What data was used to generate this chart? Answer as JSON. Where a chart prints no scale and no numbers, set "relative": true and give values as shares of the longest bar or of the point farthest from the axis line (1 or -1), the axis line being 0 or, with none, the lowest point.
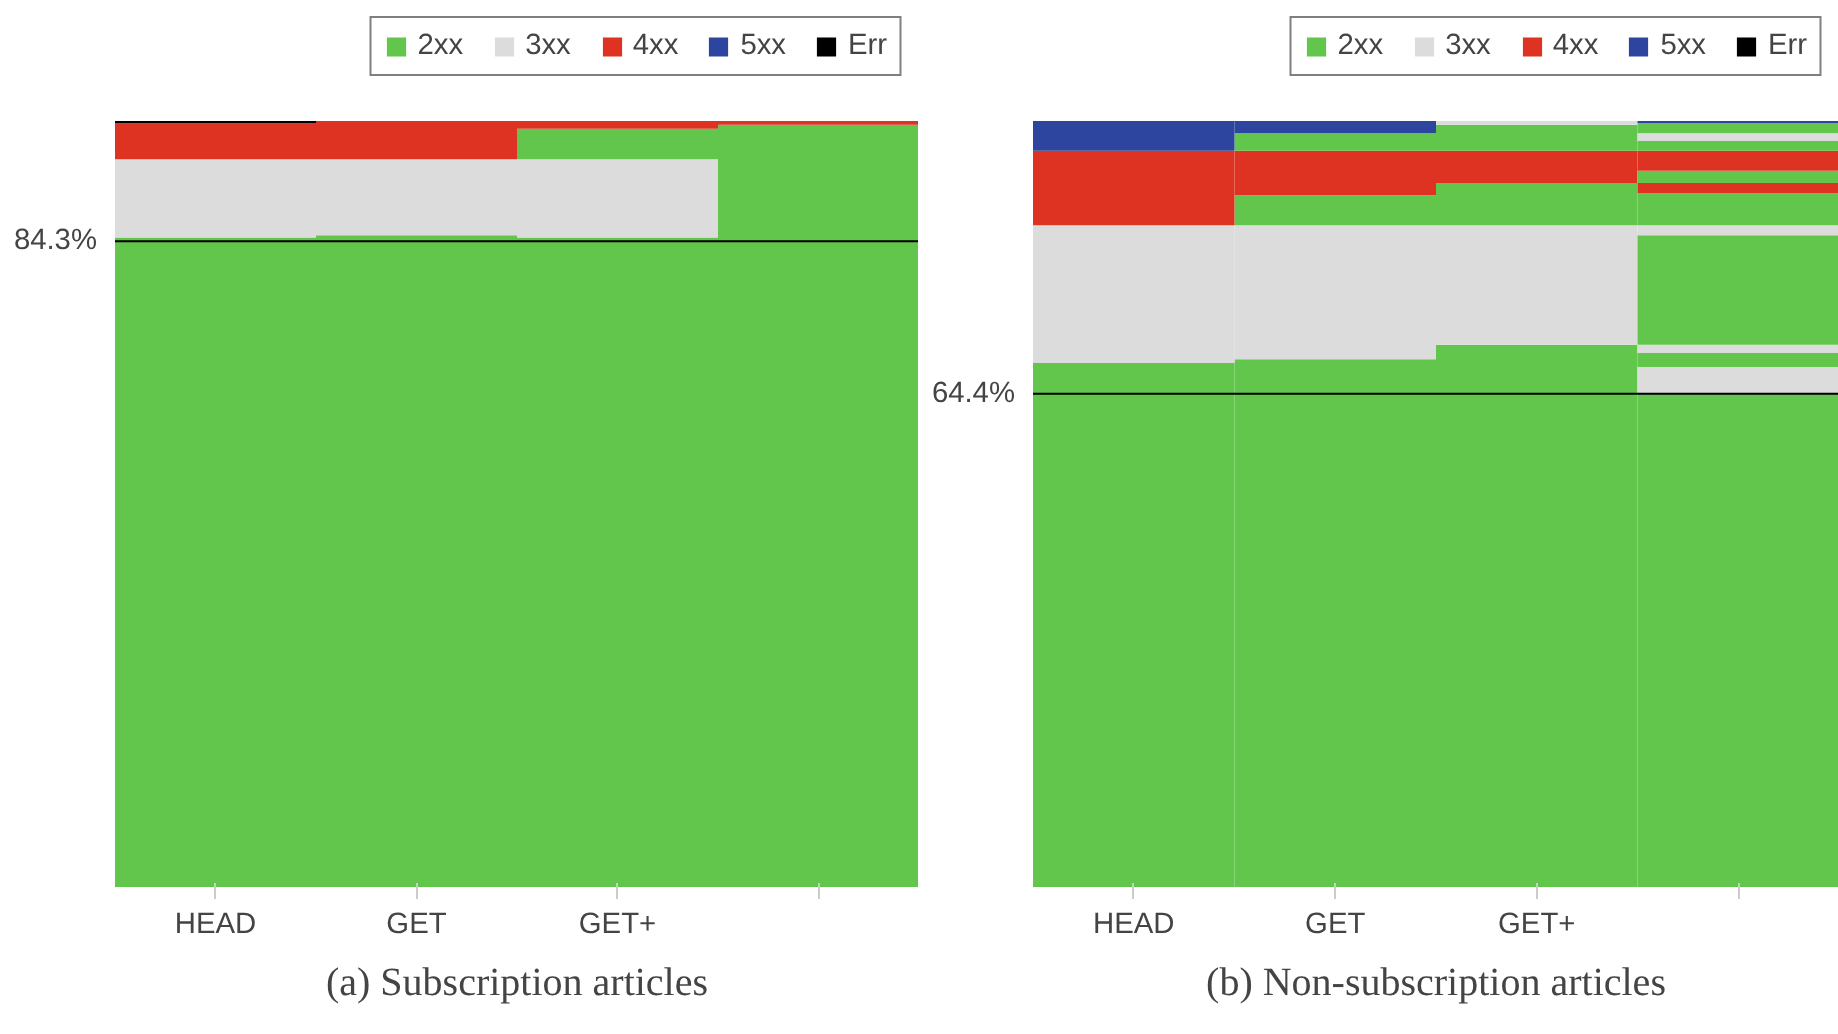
{
  "chart_data": [
    {
      "type": "bar",
      "stacked": true,
      "relative": true,
      "title": "(a) Subscription articles",
      "categories": [
        "HEAD",
        "GET",
        "GET+",
        null
      ],
      "legend": "top",
      "grid": false,
      "series": [
        {
          "name": "2xx",
          "color": "#61c64b",
          "values": [
            0.848,
            0.851,
            0.848,
            0.995
          ]
        },
        {
          "name": "3xx",
          "color": "#dcdcdc",
          "values": [
            0.102,
            0.099,
            0.102,
            null
          ]
        },
        {
          "color": "#61c64b",
          "values": [
            null,
            null,
            0.04,
            null
          ]
        },
        {
          "name": "4xx",
          "color": "#de3223",
          "values": [
            0.047,
            0.05,
            0.01,
            0.005
          ]
        },
        {
          "name": "5xx",
          "color": "#2e45a0",
          "values": [
            null,
            null,
            null,
            null
          ]
        },
        {
          "name": "Err",
          "color": "#000000",
          "values": [
            0.003,
            null,
            null,
            null
          ]
        }
      ],
      "ref_lines": [
        {
          "axis": "y",
          "value": 0.843,
          "label": "84.3%",
          "color": "#000000"
        }
      ]
    },
    {
      "type": "bar",
      "stacked": true,
      "relative": true,
      "title": "(b) Non-subscription articles",
      "categories": [
        "HEAD",
        "GET",
        "GET+",
        null
      ],
      "legend": "top",
      "grid": false,
      "series": [
        {
          "name": "2xx",
          "color": "#61c64b",
          "values": [
            0.684,
            0.689,
            0.708,
            0.645
          ]
        },
        {
          "name": "3xx",
          "color": "#dcdcdc",
          "values": [
            0.18,
            0.175,
            0.156,
            0.034
          ]
        },
        {
          "color": "#61c64b",
          "values": [
            null,
            0.039,
            0.055,
            0.018
          ]
        },
        {
          "color": "#dcdcdc",
          "values": [
            null,
            null,
            null,
            0.011
          ]
        },
        {
          "color": "#61c64b",
          "values": [
            null,
            null,
            null,
            0.143
          ]
        },
        {
          "color": "#dcdcdc",
          "values": [
            null,
            null,
            null,
            0.013
          ]
        },
        {
          "color": "#61c64b",
          "values": [
            null,
            null,
            null,
            0.042
          ]
        },
        {
          "name": "4xx",
          "color": "#de3223",
          "values": [
            0.097,
            0.058,
            0.042,
            0.013
          ]
        },
        {
          "color": "#61c64b",
          "values": [
            null,
            null,
            null,
            0.016
          ]
        },
        {
          "color": "#de3223",
          "values": [
            null,
            null,
            null,
            0.026
          ]
        },
        {
          "color": "#61c64b",
          "values": [
            null,
            0.023,
            0.034,
            0.013
          ]
        },
        {
          "color": "#dcdcdc",
          "values": [
            null,
            null,
            0.005,
            0.01
          ]
        },
        {
          "color": "#61c64b",
          "values": [
            null,
            null,
            null,
            0.013
          ]
        },
        {
          "name": "5xx",
          "color": "#2e45a0",
          "values": [
            0.039,
            0.016,
            null,
            0.003
          ]
        },
        {
          "name": "Err",
          "color": "#000000",
          "values": [
            null,
            null,
            null,
            null
          ]
        }
      ],
      "ref_lines": [
        {
          "axis": "y",
          "value": 0.644,
          "label": "64.4%",
          "color": "#000000"
        }
      ]
    }
  ]
}
